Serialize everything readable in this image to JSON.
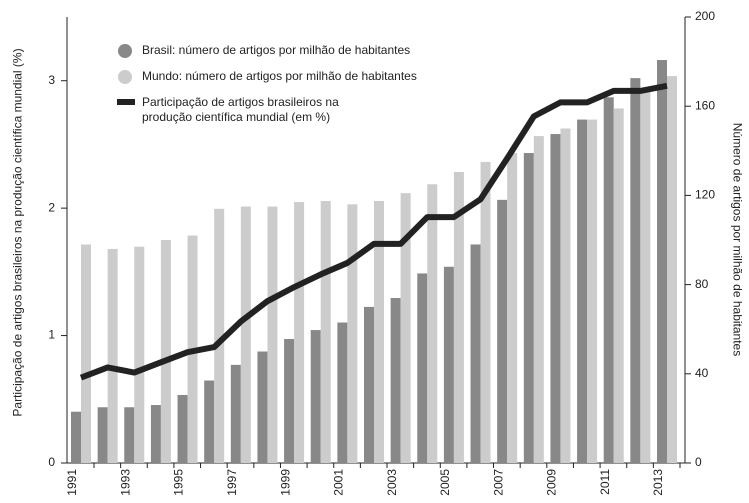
{
  "chart_data": {
    "type": "bar",
    "categories": [
      "1991",
      null,
      "1993",
      null,
      "1995",
      null,
      "1997",
      null,
      "1999",
      null,
      "2001",
      null,
      "2003",
      null,
      "2005",
      null,
      "2007",
      null,
      "2009",
      null,
      "2011",
      null,
      "2013"
    ],
    "series": [
      {
        "name": "Brasil: número de artigos por milhão de habitantes",
        "color": "#888888",
        "axis": "y2",
        "type": "bar",
        "values": [
          23,
          25,
          25,
          26,
          30.5,
          37,
          44,
          50,
          55.6,
          59.6,
          63,
          70,
          74,
          85,
          88,
          98,
          118,
          139,
          147.5,
          154,
          164,
          172.6,
          180.7
        ]
      },
      {
        "name": "Mundo: número de artigos por milhão de habitantes",
        "color": "#cccccc",
        "axis": "y2",
        "type": "bar",
        "values": [
          98,
          96,
          97,
          100,
          102,
          114,
          115,
          115,
          117,
          117.5,
          116,
          117.5,
          121,
          125,
          130.5,
          135,
          139,
          146.6,
          150,
          154,
          159,
          167,
          173.5
        ]
      },
      {
        "name": "Participação de artigos brasileiros na produção científica mundial (em %)",
        "color": "#222222",
        "axis": "y",
        "type": "line",
        "values": [
          0.67,
          0.75,
          0.71,
          0.79,
          0.87,
          0.91,
          1.11,
          1.27,
          1.38,
          1.48,
          1.57,
          1.72,
          1.72,
          1.93,
          1.93,
          2.07,
          2.39,
          2.72,
          2.83,
          2.83,
          2.92,
          2.92,
          2.96
        ]
      }
    ],
    "y_label": "Participação de artigos brasileiros na produção científica mundial (%)",
    "y2_label": "Número de artigos por milhão de habitantes",
    "ylim": [
      0,
      3.5
    ],
    "yticks": [
      0,
      1,
      2,
      3
    ],
    "y2lim": [
      0,
      200
    ],
    "y2ticks": [
      0,
      40,
      80,
      120,
      160,
      200
    ]
  }
}
